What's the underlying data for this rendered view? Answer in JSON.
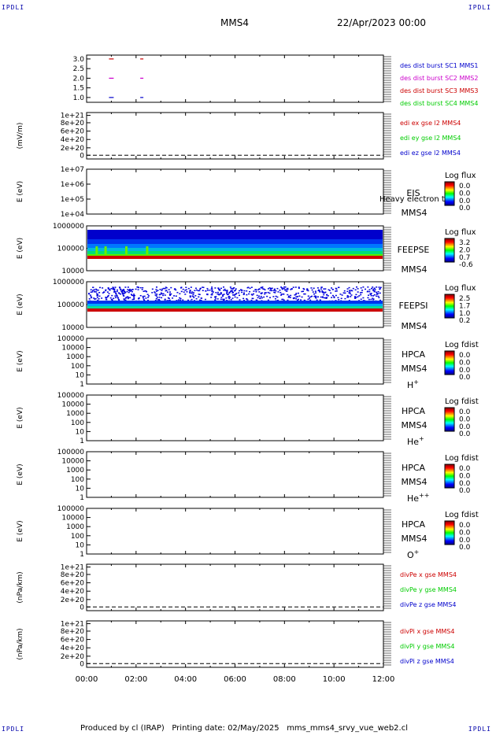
{
  "corner_label": "IPDLI",
  "header": {
    "spacecraft": "MMS4",
    "datetime": "22/Apr/2023 00:00"
  },
  "footer": {
    "text": "Produced by cl (IRAP)   Printing date: 02/May/2025   mms_mms4_srvy_vue_web2.cl"
  },
  "colors": {
    "red": "#cc0000",
    "green": "#00cc00",
    "blue": "#0000cc",
    "magenta": "#cc00cc"
  },
  "chart_data": [
    {
      "type": "scatter",
      "id": "burst",
      "yticks": [
        "3.0",
        "2.5",
        "2.0",
        "1.5",
        "1.0"
      ],
      "ylim": [
        0.75,
        3.2
      ],
      "xlim": [
        0,
        12
      ],
      "series": [
        {
          "name": "des dist burst SC1 MMS1",
          "color": "#0000cc",
          "y": 1.0,
          "x": [
            1.0,
            2.2
          ]
        },
        {
          "name": "des dist burst SC2 MMS2",
          "color": "#cc00cc",
          "y": 2.0,
          "x": [
            1.0,
            2.2
          ]
        },
        {
          "name": "des dist burst SC3 MMS3",
          "color": "#cc0000",
          "y": 3.0,
          "x": [
            1.0,
            2.2
          ]
        },
        {
          "name": "des dist burst SC4 MMS4",
          "color": "#00cc00",
          "y": null,
          "x": []
        }
      ]
    },
    {
      "type": "line",
      "id": "edi",
      "ylabel": "(mV/m)",
      "yticks": [
        "1e+21",
        "8e+20",
        "6e+20",
        "4e+20",
        "2e+20",
        "0"
      ],
      "series": [
        {
          "name": "edi ex gse l2 MMS4",
          "color": "#cc0000"
        },
        {
          "name": "edi ey gse l2 MMS4",
          "color": "#00cc00"
        },
        {
          "name": "edi ez gse l2 MMS4",
          "color": "#0000cc"
        }
      ]
    },
    {
      "type": "heatmap",
      "id": "eis",
      "ylabel": "E (eV)",
      "yticks": [
        "1e+07",
        "1e+06",
        "1e+05",
        "1e+04"
      ],
      "label": [
        "EIS",
        "MMS4"
      ],
      "overlay": "Heavy electron to",
      "cbar_title": "Log flux",
      "cbar_ticks": [
        "0.0",
        "0.0",
        "0.0",
        "0.0"
      ]
    },
    {
      "type": "heatmap",
      "id": "feepse",
      "ylabel": "E (eV)",
      "yticks": [
        "1000000",
        "100000",
        "10000"
      ],
      "label": [
        "FEEPSE",
        "MMS4"
      ],
      "cbar_title": "Log flux",
      "cbar_ticks": [
        "3.2",
        "2.0",
        "0.7",
        "-0.6"
      ]
    },
    {
      "type": "heatmap",
      "id": "feepsi",
      "ylabel": "E (eV)",
      "yticks": [
        "1000000",
        "100000",
        "10000"
      ],
      "label": [
        "FEEPSI",
        "MMS4"
      ],
      "cbar_title": "Log flux",
      "cbar_ticks": [
        "2.5",
        "1.7",
        "1.0",
        "0.2"
      ]
    },
    {
      "type": "heatmap",
      "id": "hpca_h",
      "ylabel": "E (eV)",
      "yticks": [
        "100000",
        "10000",
        "1000",
        "100",
        "10",
        "1"
      ],
      "label": [
        "HPCA",
        "MMS4"
      ],
      "species": "H",
      "species_sup": "+",
      "cbar_title": "Log fdist",
      "cbar_ticks": [
        "0.0",
        "0.0",
        "0.0",
        "0.0"
      ]
    },
    {
      "type": "heatmap",
      "id": "hpca_he",
      "ylabel": "E (eV)",
      "yticks": [
        "100000",
        "10000",
        "1000",
        "100",
        "10",
        "1"
      ],
      "label": [
        "HPCA",
        "MMS4"
      ],
      "species": "He",
      "species_sup": "+",
      "cbar_title": "Log fdist",
      "cbar_ticks": [
        "0.0",
        "0.0",
        "0.0",
        "0.0"
      ]
    },
    {
      "type": "heatmap",
      "id": "hpca_he2",
      "ylabel": "E (eV)",
      "yticks": [
        "100000",
        "10000",
        "1000",
        "100",
        "10",
        "1"
      ],
      "label": [
        "HPCA",
        "MMS4"
      ],
      "species": "He",
      "species_sup": "++",
      "cbar_title": "Log fdist",
      "cbar_ticks": [
        "0.0",
        "0.0",
        "0.0",
        "0.0"
      ]
    },
    {
      "type": "heatmap",
      "id": "hpca_o",
      "ylabel": "E (eV)",
      "yticks": [
        "100000",
        "10000",
        "1000",
        "100",
        "10",
        "1"
      ],
      "label": [
        "HPCA",
        "MMS4"
      ],
      "species": "O",
      "species_sup": "+",
      "cbar_title": "Log fdist",
      "cbar_ticks": [
        "0.0",
        "0.0",
        "0.0",
        "0.0"
      ]
    },
    {
      "type": "line",
      "id": "divpe",
      "ylabel": "(nPa/km)",
      "yticks": [
        "1e+21",
        "8e+20",
        "6e+20",
        "4e+20",
        "2e+20",
        "0"
      ],
      "series": [
        {
          "name": "divPe x gse MMS4",
          "color": "#cc0000"
        },
        {
          "name": "divPe y gse MMS4",
          "color": "#00cc00"
        },
        {
          "name": "divPe z gse MMS4",
          "color": "#0000cc"
        }
      ]
    },
    {
      "type": "line",
      "id": "divpi",
      "ylabel": "(nPa/km)",
      "yticks": [
        "1e+21",
        "8e+20",
        "6e+20",
        "4e+20",
        "2e+20",
        "0"
      ],
      "series": [
        {
          "name": "divPi x gse MMS4",
          "color": "#cc0000"
        },
        {
          "name": "divPi y gse MMS4",
          "color": "#00cc00"
        },
        {
          "name": "divPi z gse MMS4",
          "color": "#0000cc"
        }
      ]
    }
  ],
  "xaxis": {
    "ticks": [
      "00:00",
      "02:00",
      "04:00",
      "06:00",
      "08:00",
      "10:00",
      "12:00"
    ],
    "xlim": [
      0,
      12
    ]
  }
}
